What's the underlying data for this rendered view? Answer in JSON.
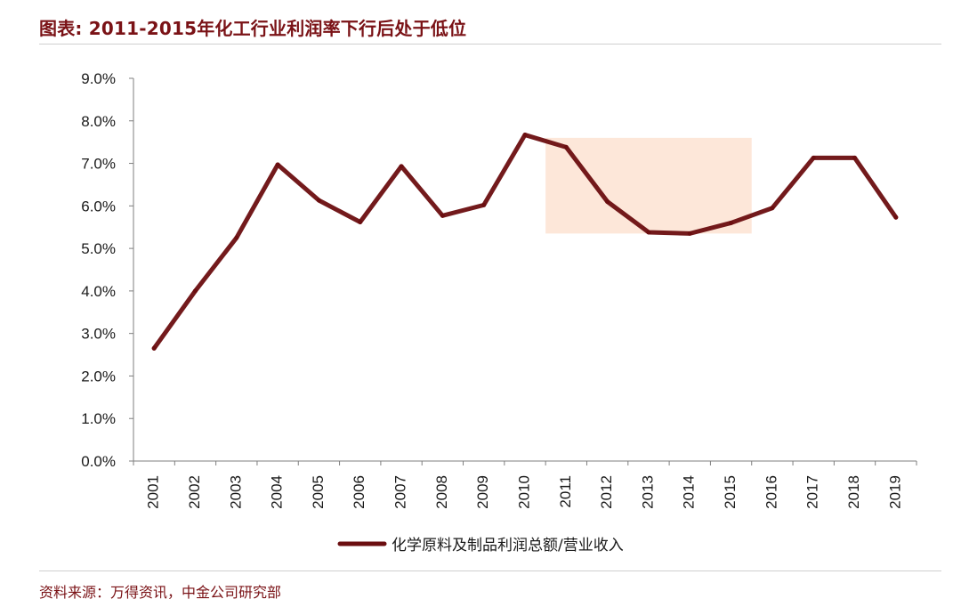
{
  "header": {
    "title": "图表: 2011-2015年化工行业利润率下行后处于低位"
  },
  "footer": {
    "source": "资料来源：万得资讯，中金公司研究部"
  },
  "colors": {
    "title": "#7a1216",
    "line": "#6b0e10",
    "highlight": "#fde3d2",
    "axis": "#7f7f7f",
    "rule": "#cfcfcf"
  },
  "chart_data": {
    "type": "line",
    "title": "",
    "xlabel": "",
    "ylabel": "",
    "categories": [
      "2001",
      "2002",
      "2003",
      "2004",
      "2005",
      "2006",
      "2007",
      "2008",
      "2009",
      "2010",
      "2011",
      "2012",
      "2013",
      "2014",
      "2015",
      "2016",
      "2017",
      "2018",
      "2019"
    ],
    "ylim": [
      0,
      9
    ],
    "yticks": [
      "0.0%",
      "1.0%",
      "2.0%",
      "3.0%",
      "4.0%",
      "5.0%",
      "6.0%",
      "7.0%",
      "8.0%",
      "9.0%"
    ],
    "series": [
      {
        "name": "化学原料及制品利润总额/营业收入",
        "values": [
          2.65,
          4.0,
          5.25,
          6.97,
          6.13,
          5.62,
          6.93,
          5.77,
          6.02,
          7.67,
          7.38,
          6.1,
          5.38,
          5.35,
          5.6,
          5.95,
          7.13,
          7.13,
          5.73
        ]
      }
    ],
    "highlight": {
      "x_start": "2011",
      "x_end": "2015",
      "y_range": [
        5.35,
        7.6
      ],
      "label": ""
    },
    "grid": false,
    "legend": "bottom-center"
  }
}
